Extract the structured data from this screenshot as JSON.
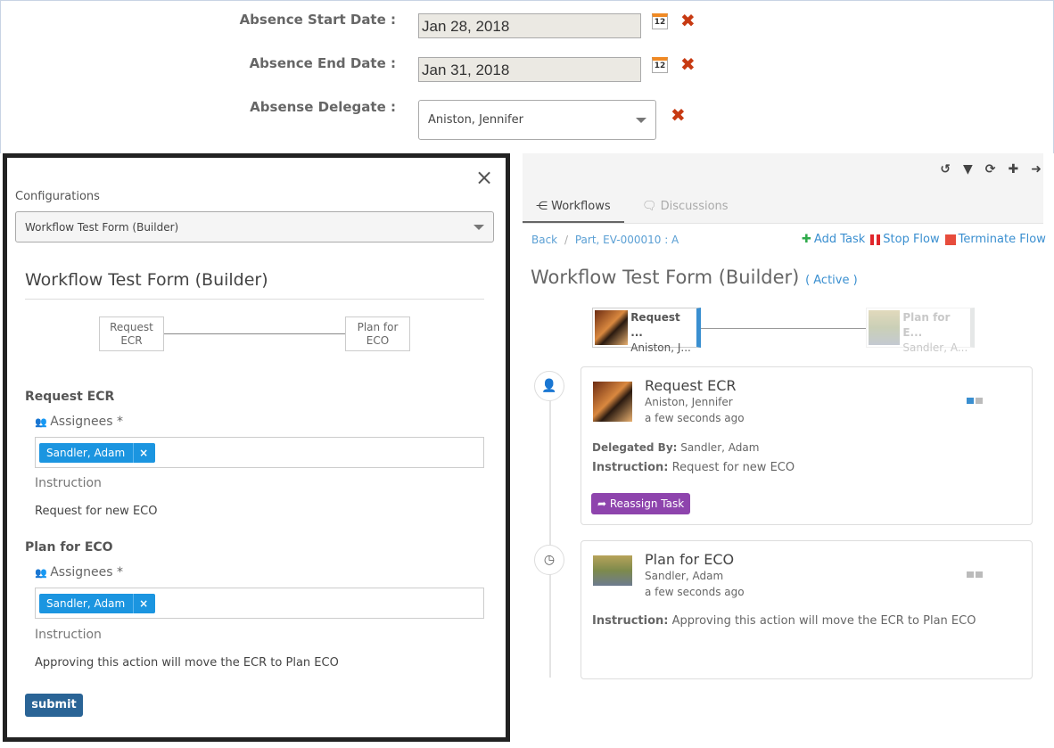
{
  "absence_form": {
    "start_label": "Absence Start Date :",
    "start_value": "Jan 28, 2018",
    "end_label": "Absence End Date :",
    "end_value": "Jan 31, 2018",
    "delegate_label": "Absense Delegate :",
    "delegate_value": "Aniston, Jennifer",
    "calendar_day": "12",
    "clear_icon": "✖"
  },
  "modal": {
    "close": "×",
    "config_label": "Configurations",
    "config_value": "Workflow Test Form (Builder)",
    "title": "Workflow Test Form (Builder)",
    "diagram": {
      "node1": "Request ECR",
      "node2": "Plan for ECO"
    },
    "tasks": [
      {
        "name": "Request ECR",
        "assignees_label": "Assignees *",
        "assignee": "Sandler, Adam",
        "remove": "×",
        "instruction_label": "Instruction",
        "instruction": "Request for new ECO"
      },
      {
        "name": "Plan for ECO",
        "assignees_label": "Assignees *",
        "assignee": "Sandler, Adam",
        "remove": "×",
        "instruction_label": "Instruction",
        "instruction": "Approving this action will move the ECR to Plan ECO"
      }
    ],
    "submit": "submit"
  },
  "panel": {
    "toolbar": [
      "history-icon",
      "filter-icon",
      "refresh-icon",
      "plus-icon",
      "arrow-right-icon"
    ],
    "tabs": [
      {
        "label": "Workflows"
      },
      {
        "label": "Discussions"
      }
    ],
    "breadcrumb": {
      "back": "Back",
      "sep": "/",
      "item": "Part, EV-000010 : A"
    },
    "actions": {
      "add": "Add Task",
      "stop": "Stop Flow",
      "terminate": "Terminate Flow"
    },
    "title": "Workflow Test Form (Builder)",
    "status": "( Active )",
    "flow": [
      {
        "name": "Request ...",
        "user": "Aniston, J..."
      },
      {
        "name": "Plan for E...",
        "user": "Sandler, A..."
      }
    ],
    "cards": [
      {
        "title": "Request ECR",
        "user": "Aniston, Jennifer",
        "time": "a few seconds ago",
        "delegated_label": "Delegated By:",
        "delegated": "Sandler, Adam",
        "instruction_label": "Instruction:",
        "instruction": "Request for new ECO",
        "button": "Reassign Task"
      },
      {
        "title": "Plan for ECO",
        "user": "Sandler, Adam",
        "time": "a few seconds ago",
        "instruction_label": "Instruction:",
        "instruction": "Approving this action will move the ECR to Plan ECO"
      }
    ],
    "colors": {
      "accent": "#3a8fd0",
      "reassign": "#8e44ad",
      "add": "#2eaa4a",
      "stop": "#e0262b",
      "terminate": "#e74c3c"
    }
  }
}
